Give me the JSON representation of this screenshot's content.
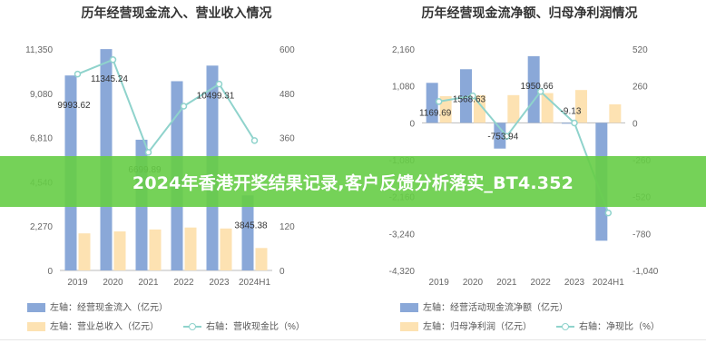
{
  "chart_data": [
    {
      "type": "bar",
      "title": "历年经营现金流入、营业收入情况",
      "categories": [
        "2019",
        "2020",
        "2021",
        "2022",
        "2023",
        "2024H1"
      ],
      "y_left_ticks": [
        "0",
        "2,270",
        "4,540",
        "6,810",
        "9,080",
        "11,350"
      ],
      "y_right_ticks": [
        "0",
        "120",
        "240",
        "360",
        "480",
        "600"
      ],
      "ylim_left": [
        0,
        11350
      ],
      "ylim_right": [
        0,
        600
      ],
      "series": [
        {
          "name": "左轴：经营现金流入（亿元）",
          "type": "bar",
          "axis": "left",
          "color": "#8aa8d8",
          "values": [
            9993.62,
            11345.24,
            6699.89,
            9700,
            10499.31,
            3845.38
          ],
          "labels": [
            "9993.62",
            "11345.24",
            "6699.89",
            "",
            "10499.31",
            "3845.38"
          ]
        },
        {
          "name": "左轴：营业总收入（亿元）",
          "type": "bar",
          "axis": "left",
          "color": "#fde2b2",
          "values": [
            1900,
            2000,
            2100,
            2200,
            2150,
            1150
          ],
          "labels": [
            "",
            "",
            "",
            "",
            "",
            ""
          ]
        },
        {
          "name": "右轴：营收现金比（%）",
          "type": "line",
          "axis": "right",
          "color": "#8fd3cc",
          "values": [
            532,
            571,
            320,
            445,
            505,
            352
          ]
        }
      ],
      "legend_position": "bottom",
      "grid": false
    },
    {
      "type": "bar",
      "title": "历年经营现金流净额、归母净利润情况",
      "categories": [
        "2019",
        "2020",
        "2021",
        "2022",
        "2023",
        "2024H1"
      ],
      "y_left_ticks": [
        "-4,320",
        "-3,240",
        "-2,160",
        "-1,080",
        "0",
        "1,080",
        "2,160"
      ],
      "y_right_ticks": [
        "-1,040",
        "-780",
        "-520",
        "-260",
        "0",
        "260",
        "520"
      ],
      "ylim_left": [
        -4320,
        2160
      ],
      "ylim_right": [
        -1040,
        520
      ],
      "series": [
        {
          "name": "左轴：经营活动现金流净额（亿元）",
          "type": "bar",
          "axis": "left",
          "color": "#8aa8d8",
          "values": [
            1169.69,
            1568.63,
            -753.94,
            1950.66,
            -9.13,
            -3450
          ],
          "labels": [
            "1169.69",
            "1568.63",
            "-753.94",
            "1950.66",
            "-9.13",
            ""
          ]
        },
        {
          "name": "左轴：归母净利润（亿元）",
          "type": "bar",
          "axis": "left",
          "color": "#fde2b2",
          "values": [
            780,
            810,
            810,
            870,
            960,
            540
          ],
          "labels": [
            "",
            "",
            "",
            "",
            "",
            ""
          ]
        },
        {
          "name": "右轴：净现比（%）",
          "type": "line",
          "axis": "right",
          "color": "#8fd3cc",
          "values": [
            150,
            190,
            -95,
            220,
            -1,
            -635
          ]
        }
      ],
      "legend_position": "bottom",
      "grid": false
    }
  ],
  "banner": {
    "text": "2024年香港开奖结果记录,客户反馈分析落实_BT4.352"
  }
}
